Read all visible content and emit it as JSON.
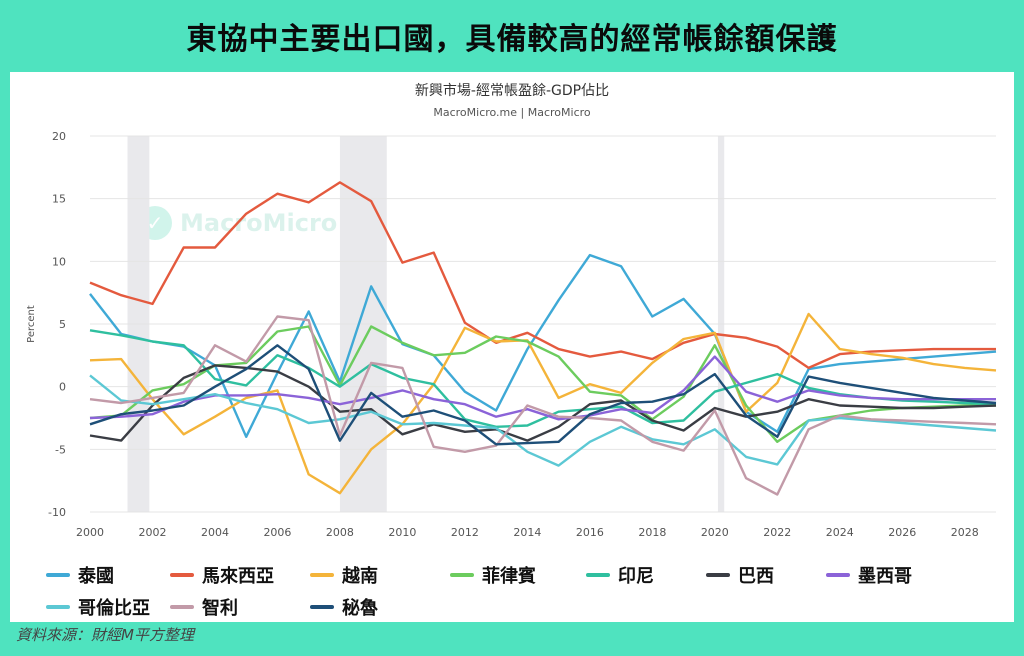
{
  "headline": "東協中主要出口國，具備較高的經常帳餘額保護",
  "footer": "資料來源：財經M平方整理",
  "watermark": "MacroMicro",
  "chart_data": {
    "type": "line",
    "title": "新興市場-經常帳盈餘-GDP佔比",
    "subtitle": "MacroMicro.me | MacroMicro",
    "ylabel": "Percent",
    "xlabel": "",
    "ylim": [
      -10,
      20
    ],
    "yticks": [
      20,
      15,
      10,
      5,
      0,
      -5,
      -10
    ],
    "xlim": [
      2000,
      2029
    ],
    "xticks": [
      2000,
      2002,
      2004,
      2006,
      2008,
      2010,
      2012,
      2014,
      2016,
      2018,
      2020,
      2022,
      2024,
      2026,
      2028
    ],
    "grid": true,
    "legend_position": "bottom",
    "shaded_ranges": [
      [
        2001.2,
        2001.9
      ],
      [
        2008.0,
        2009.5
      ],
      [
        2020.1,
        2020.3
      ]
    ],
    "x": [
      2000,
      2001,
      2002,
      2003,
      2004,
      2005,
      2006,
      2007,
      2008,
      2009,
      2010,
      2011,
      2012,
      2013,
      2014,
      2015,
      2016,
      2017,
      2018,
      2019,
      2020,
      2021,
      2022,
      2023,
      2024,
      2025,
      2026,
      2027,
      2028,
      2029
    ],
    "series": [
      {
        "name": "泰國",
        "color": "#3fa9d6",
        "values": [
          7.4,
          4.2,
          3.6,
          3.2,
          1.7,
          -4.0,
          1.1,
          6.0,
          0.4,
          8.0,
          3.4,
          2.5,
          -0.4,
          -1.9,
          3.0,
          6.9,
          10.5,
          9.6,
          5.6,
          7.0,
          4.2,
          -2.0,
          -3.6,
          1.4,
          1.8,
          2.0,
          2.2,
          2.4,
          2.6,
          2.8
        ]
      },
      {
        "name": "馬來西亞",
        "color": "#e45a3e",
        "values": [
          8.3,
          7.3,
          6.6,
          11.1,
          11.1,
          13.8,
          15.4,
          14.7,
          16.3,
          14.8,
          9.9,
          10.7,
          5.1,
          3.5,
          4.3,
          3.0,
          2.4,
          2.8,
          2.2,
          3.5,
          4.2,
          3.9,
          3.2,
          1.5,
          2.6,
          2.8,
          2.9,
          3.0,
          3.0,
          3.0
        ]
      },
      {
        "name": "越南",
        "color": "#f4b43a",
        "values": [
          2.1,
          2.2,
          -1.0,
          -3.8,
          -2.4,
          -0.9,
          -0.3,
          -7.0,
          -8.5,
          -5.0,
          -3.0,
          0.2,
          4.7,
          3.6,
          3.7,
          -0.9,
          0.2,
          -0.5,
          1.9,
          3.8,
          4.3,
          -2.0,
          0.3,
          5.8,
          3.0,
          2.6,
          2.3,
          1.8,
          1.5,
          1.3
        ]
      },
      {
        "name": "菲律賓",
        "color": "#6ccc5e",
        "values": [
          -2.5,
          -2.3,
          -0.3,
          0.2,
          1.7,
          1.9,
          4.4,
          4.8,
          0.1,
          4.8,
          3.5,
          2.5,
          2.7,
          4.0,
          3.6,
          2.4,
          -0.4,
          -0.7,
          -2.6,
          -0.8,
          3.3,
          -1.5,
          -4.4,
          -2.7,
          -2.3,
          -1.9,
          -1.7,
          -1.6,
          -1.5,
          -1.5
        ]
      },
      {
        "name": "印尼",
        "color": "#2fbf9f",
        "values": [
          4.5,
          4.1,
          3.6,
          3.3,
          0.6,
          0.1,
          2.5,
          1.5,
          0.0,
          1.8,
          0.7,
          0.2,
          -2.6,
          -3.2,
          -3.1,
          -2.0,
          -1.8,
          -1.6,
          -2.9,
          -2.7,
          -0.4,
          0.3,
          1.0,
          -0.1,
          -0.6,
          -0.9,
          -1.1,
          -1.2,
          -1.3,
          -1.4
        ]
      },
      {
        "name": "巴西",
        "color": "#3a3d44",
        "values": [
          -3.9,
          -4.3,
          -1.5,
          0.7,
          1.7,
          1.5,
          1.2,
          0.0,
          -2.0,
          -1.8,
          -3.8,
          -3.0,
          -3.6,
          -3.4,
          -4.3,
          -3.2,
          -1.4,
          -1.1,
          -2.7,
          -3.5,
          -1.7,
          -2.4,
          -2.0,
          -1.0,
          -1.5,
          -1.6,
          -1.7,
          -1.7,
          -1.6,
          -1.5
        ]
      },
      {
        "name": "墨西哥",
        "color": "#8b63d8",
        "values": [
          -2.5,
          -2.4,
          -2.2,
          -1.2,
          -0.7,
          -0.7,
          -0.6,
          -0.9,
          -1.4,
          -0.9,
          -0.3,
          -1.0,
          -1.4,
          -2.4,
          -1.8,
          -2.6,
          -2.3,
          -1.8,
          -2.1,
          -0.3,
          2.4,
          -0.4,
          -1.2,
          -0.3,
          -0.7,
          -0.9,
          -1.0,
          -1.0,
          -1.0,
          -1.0
        ]
      },
      {
        "name": "哥倫比亞",
        "color": "#5cc8d4",
        "values": [
          0.9,
          -1.1,
          -1.4,
          -1.0,
          -0.6,
          -1.3,
          -1.8,
          -2.9,
          -2.6,
          -2.0,
          -3.0,
          -2.9,
          -3.1,
          -3.3,
          -5.2,
          -6.3,
          -4.4,
          -3.2,
          -4.2,
          -4.6,
          -3.4,
          -5.6,
          -6.2,
          -2.7,
          -2.5,
          -2.7,
          -2.9,
          -3.1,
          -3.3,
          -3.5
        ]
      },
      {
        "name": "智利",
        "color": "#c29aa8",
        "values": [
          -1.0,
          -1.3,
          -0.9,
          -0.5,
          3.3,
          2.0,
          5.6,
          5.3,
          -3.9,
          1.9,
          1.5,
          -4.8,
          -5.2,
          -4.7,
          -1.5,
          -2.4,
          -2.5,
          -2.7,
          -4.4,
          -5.1,
          -1.9,
          -7.3,
          -8.6,
          -3.4,
          -2.3,
          -2.6,
          -2.7,
          -2.8,
          -2.9,
          -3.0
        ]
      },
      {
        "name": "秘魯",
        "color": "#1e4f78",
        "values": [
          -3.0,
          -2.2,
          -1.9,
          -1.5,
          0.0,
          1.4,
          3.3,
          1.4,
          -4.3,
          -0.5,
          -2.4,
          -1.9,
          -2.7,
          -4.6,
          -4.5,
          -4.4,
          -2.2,
          -1.3,
          -1.2,
          -0.6,
          1.0,
          -2.3,
          -4.0,
          0.8,
          0.3,
          -0.1,
          -0.5,
          -0.9,
          -1.1,
          -1.3
        ]
      }
    ]
  }
}
